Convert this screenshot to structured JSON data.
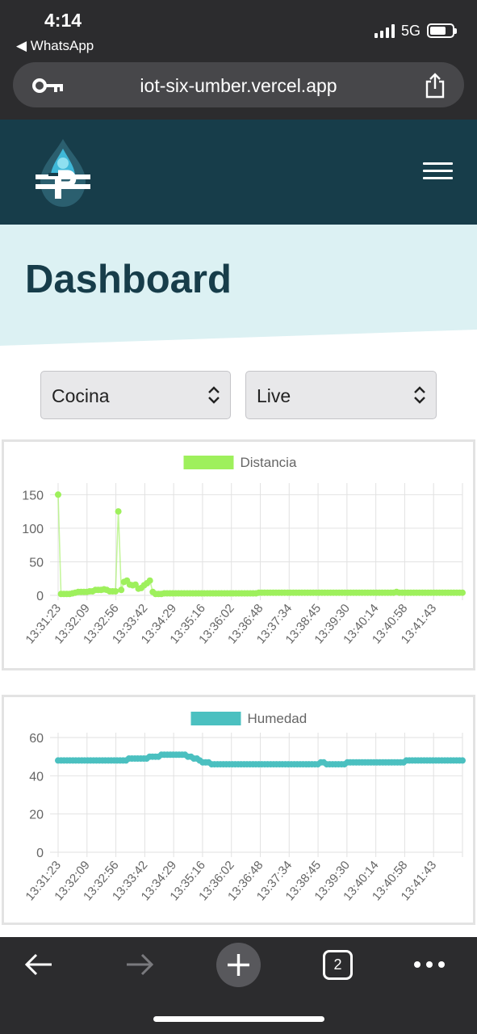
{
  "status_bar": {
    "time": "4:14",
    "back_app": "◀ WhatsApp",
    "network": "5G"
  },
  "browser": {
    "url": "iot-six-umber.vercel.app",
    "open_tabs": "2"
  },
  "hero": {
    "title": "Dashboard"
  },
  "selects": {
    "room": "Cocina",
    "mode": "Live"
  },
  "colors": {
    "header": "#173d4a",
    "hero_bg": "#dcf1f3",
    "distancia": "#9ef05c",
    "humedad": "#4bc0c0"
  },
  "chart_data": [
    {
      "type": "line",
      "series": [
        {
          "name": "Distancia",
          "values": [
            150,
            2,
            2,
            2,
            2,
            3,
            4,
            5,
            5,
            5,
            5,
            6,
            6,
            8,
            8,
            8,
            9,
            8,
            6,
            6,
            6,
            125,
            8,
            20,
            22,
            16,
            15,
            16,
            10,
            11,
            15,
            18,
            22,
            5,
            2,
            2,
            2,
            3,
            3,
            3,
            3,
            3,
            3,
            3,
            3,
            3,
            3,
            3,
            3,
            3,
            3,
            3,
            3,
            3,
            3,
            3,
            3,
            3,
            3,
            3,
            3,
            3,
            3,
            3,
            3,
            3,
            3,
            3,
            3,
            3,
            4,
            4,
            4,
            4,
            4,
            4,
            4,
            4,
            4,
            4,
            4,
            4,
            4,
            4,
            4,
            4,
            4,
            4,
            4,
            4,
            4,
            4,
            4,
            4,
            4,
            4,
            4,
            4,
            4,
            4,
            4,
            4,
            4,
            4,
            4,
            4,
            4,
            4,
            4,
            4,
            4,
            4,
            4,
            4,
            4,
            4,
            4,
            4,
            5,
            4,
            4,
            4,
            4,
            4,
            4,
            4,
            4,
            4,
            4,
            4,
            4,
            4,
            4,
            4,
            4,
            4,
            4,
            4,
            4,
            4,
            4,
            4
          ]
        }
      ],
      "x_tick_labels": [
        "13:31:23",
        "13:32:09",
        "13:32:56",
        "13:33:42",
        "13:34:29",
        "13:35:16",
        "13:36:02",
        "13:36:48",
        "13:37:34",
        "13:38:45",
        "13:39:30",
        "13:40:14",
        "13:40:58",
        "13:41:43"
      ],
      "y_ticks": [
        0,
        50,
        100,
        150
      ],
      "ylim": [
        0,
        160
      ],
      "legend": "top-center",
      "grid": true
    },
    {
      "type": "line",
      "series": [
        {
          "name": "Humedad",
          "values": [
            48,
            48,
            48,
            48,
            48,
            48,
            48,
            48,
            48,
            48,
            48,
            48,
            48,
            48,
            48,
            48,
            48,
            48,
            48,
            48,
            48,
            48,
            48,
            48,
            49,
            49,
            49,
            49,
            49,
            49,
            49,
            50,
            50,
            50,
            50,
            51,
            51,
            51,
            51,
            51,
            51,
            51,
            51,
            51,
            50,
            50,
            49,
            49,
            48,
            47,
            47,
            47,
            46,
            46,
            46,
            46,
            46,
            46,
            46,
            46,
            46,
            46,
            46,
            46,
            46,
            46,
            46,
            46,
            46,
            46,
            46,
            46,
            46,
            46,
            46,
            46,
            46,
            46,
            46,
            46,
            46,
            46,
            46,
            46,
            46,
            46,
            46,
            46,
            46,
            47,
            47,
            46,
            46,
            46,
            46,
            46,
            46,
            46,
            47,
            47,
            47,
            47,
            47,
            47,
            47,
            47,
            47,
            47,
            47,
            47,
            47,
            47,
            47,
            47,
            47,
            47,
            47,
            47,
            48,
            48,
            48,
            48,
            48,
            48,
            48,
            48,
            48,
            48,
            48,
            48,
            48,
            48,
            48,
            48,
            48,
            48,
            48,
            48
          ]
        }
      ],
      "x_tick_labels": [
        "13:31:23",
        "13:32:09",
        "13:32:56",
        "13:33:42",
        "13:34:29",
        "13:35:16",
        "13:36:02",
        "13:36:48",
        "13:37:34",
        "13:38:45",
        "13:39:30",
        "13:40:14",
        "13:40:58",
        "13:41:43"
      ],
      "y_ticks": [
        0,
        20,
        40,
        60
      ],
      "ylim": [
        0,
        60
      ],
      "legend": "top-center",
      "grid": true
    }
  ]
}
